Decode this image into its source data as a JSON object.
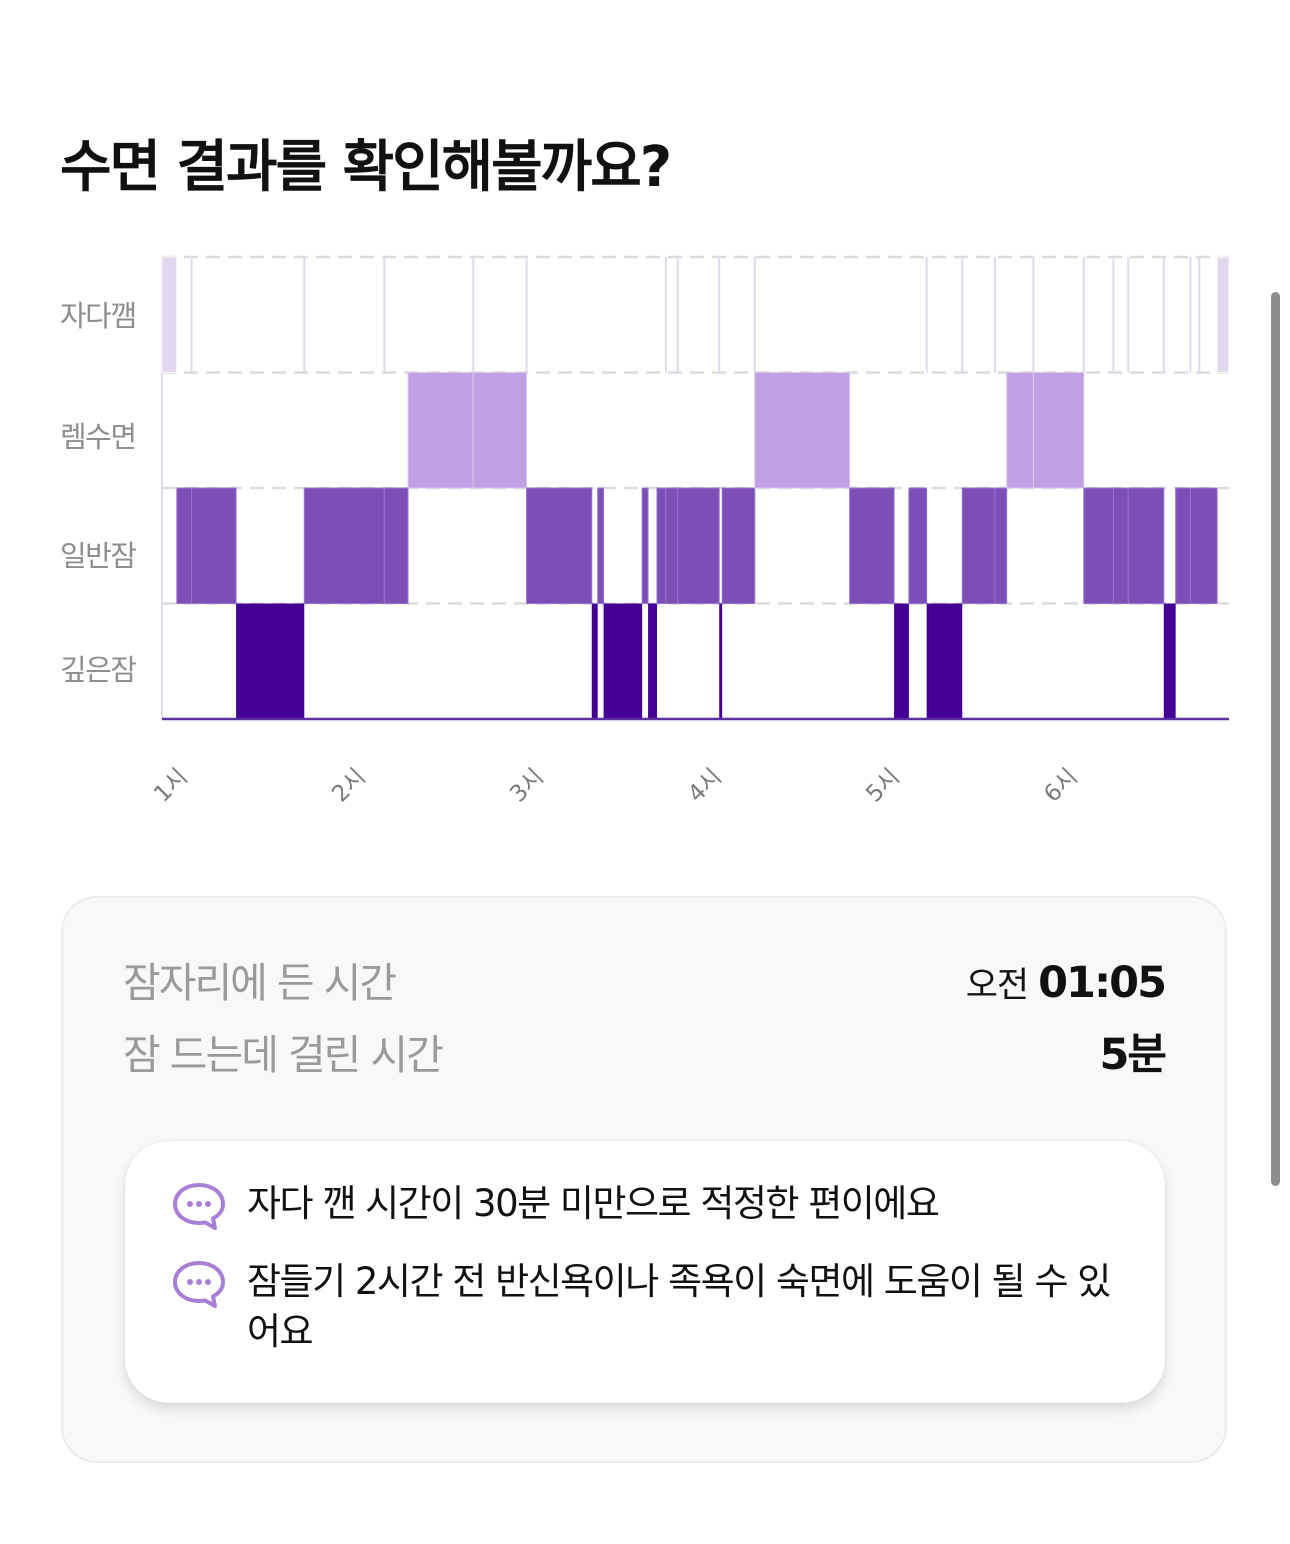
{
  "header": {
    "title": "수면 결과를 확인해볼까요?"
  },
  "chart_data": {
    "type": "hypnogram",
    "stages": [
      "자다깸",
      "렘수면",
      "일반잠",
      "깊은잠"
    ],
    "xlabel": "",
    "ylabel": "",
    "x_ticks": [
      "1시",
      "2시",
      "3시",
      "4시",
      "5시",
      "6시"
    ],
    "xlim": [
      "01:00",
      "07:00"
    ],
    "grid": true,
    "colors": {
      "자다깸": "#e2d8ee",
      "렘수면": "#bfa1e3",
      "일반잠": "#7b4fb5",
      "깊은잠": "#440095"
    },
    "segments": [
      {
        "start": "01:00",
        "end": "01:05",
        "stage": "자다깸"
      },
      {
        "start": "01:05",
        "end": "01:10",
        "stage": "일반잠"
      },
      {
        "start": "01:10",
        "end": "01:25",
        "stage": "일반잠"
      },
      {
        "start": "01:25",
        "end": "01:48",
        "stage": "깊은잠"
      },
      {
        "start": "01:48",
        "end": "02:15",
        "stage": "일반잠"
      },
      {
        "start": "02:15",
        "end": "02:23",
        "stage": "일반잠"
      },
      {
        "start": "02:23",
        "end": "02:45",
        "stage": "렘수면"
      },
      {
        "start": "02:45",
        "end": "03:03",
        "stage": "렘수면"
      },
      {
        "start": "03:03",
        "end": "03:25",
        "stage": "일반잠"
      },
      {
        "start": "03:25",
        "end": "03:27",
        "stage": "깊은잠"
      },
      {
        "start": "03:27",
        "end": "03:29",
        "stage": "일반잠"
      },
      {
        "start": "03:29",
        "end": "03:42",
        "stage": "깊은잠"
      },
      {
        "start": "03:42",
        "end": "03:44",
        "stage": "일반잠"
      },
      {
        "start": "03:44",
        "end": "03:47",
        "stage": "깊은잠"
      },
      {
        "start": "03:47",
        "end": "03:50",
        "stage": "일반잠"
      },
      {
        "start": "03:50",
        "end": "03:54",
        "stage": "일반잠"
      },
      {
        "start": "03:54",
        "end": "04:08",
        "stage": "일반잠"
      },
      {
        "start": "04:08",
        "end": "04:09",
        "stage": "깊은잠"
      },
      {
        "start": "04:09",
        "end": "04:20",
        "stage": "일반잠"
      },
      {
        "start": "04:20",
        "end": "04:52",
        "stage": "렘수면"
      },
      {
        "start": "04:52",
        "end": "05:07",
        "stage": "일반잠"
      },
      {
        "start": "05:07",
        "end": "05:12",
        "stage": "깊은잠"
      },
      {
        "start": "05:12",
        "end": "05:18",
        "stage": "일반잠"
      },
      {
        "start": "05:18",
        "end": "05:30",
        "stage": "깊은잠"
      },
      {
        "start": "05:30",
        "end": "05:41",
        "stage": "일반잠"
      },
      {
        "start": "05:41",
        "end": "05:45",
        "stage": "일반잠"
      },
      {
        "start": "05:45",
        "end": "05:54",
        "stage": "렘수면"
      },
      {
        "start": "05:54",
        "end": "06:11",
        "stage": "렘수면"
      },
      {
        "start": "06:11",
        "end": "06:21",
        "stage": "일반잠"
      },
      {
        "start": "06:21",
        "end": "06:26",
        "stage": "일반잠"
      },
      {
        "start": "06:26",
        "end": "06:38",
        "stage": "일반잠"
      },
      {
        "start": "06:38",
        "end": "06:42",
        "stage": "깊은잠"
      },
      {
        "start": "06:42",
        "end": "06:47",
        "stage": "일반잠"
      },
      {
        "start": "06:47",
        "end": "06:56",
        "stage": "일반잠"
      },
      {
        "start": "06:56",
        "end": "07:00",
        "stage": "자다깸"
      }
    ],
    "awake_markers": [
      "01:10",
      "01:48",
      "02:15",
      "02:45",
      "03:03",
      "03:50",
      "03:54",
      "04:08",
      "04:20",
      "05:18",
      "05:30",
      "05:41",
      "05:54",
      "06:11",
      "06:21",
      "06:26",
      "06:38",
      "06:47",
      "06:50"
    ]
  },
  "summary": {
    "bedtime_label": "잠자리에 든 시간",
    "bedtime_prefix": "오전",
    "bedtime_value": "01:05",
    "latency_label": "잠 드는데 걸린 시간",
    "latency_value": "5분"
  },
  "tips": [
    {
      "icon": "chat-bubble-icon",
      "text": "자다 깬 시간이 30분 미만으로 적정한 편이에요"
    },
    {
      "icon": "chat-bubble-icon",
      "text": "잠들기 2시간 전 반신욕이나 족욕이 숙면에 도움이 될 수 있어요"
    }
  ],
  "icon_color": "#a97fd6"
}
